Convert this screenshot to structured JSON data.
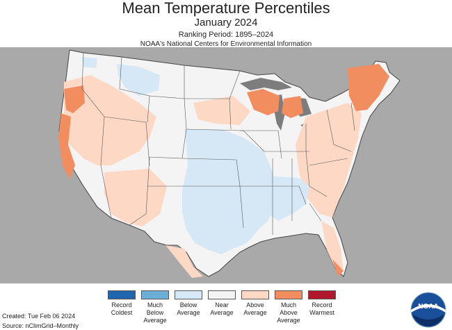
{
  "header": {
    "title": "Mean Temperature Percentiles",
    "subtitle": "January 2024",
    "ranking_period": "Ranking Period: 1895–2024",
    "source_org": "NOAA's National Centers for Environmental Information"
  },
  "legend": {
    "items": [
      {
        "label": "Record Coldest",
        "color": "#2166ac"
      },
      {
        "label": "Much Below Average",
        "color": "#6baed6"
      },
      {
        "label": "Below Average",
        "color": "#d6e8f5"
      },
      {
        "label": "Near Average",
        "color": "#f4f4f4"
      },
      {
        "label": "Above Average",
        "color": "#fdd8c4"
      },
      {
        "label": "Much Above Average",
        "color": "#f28d60"
      },
      {
        "label": "Record Warmest",
        "color": "#b2182b"
      }
    ]
  },
  "footer": {
    "created": "Created: Tue Feb 06 2024",
    "source": "Source: nClimGrid–Monthly"
  },
  "logo": {
    "text": "NOAA"
  },
  "colors": {
    "background_land": "#a9a9a9",
    "us_land": "#f4f4f4",
    "water": "#7d7d7d",
    "state_border": "#555555"
  }
}
